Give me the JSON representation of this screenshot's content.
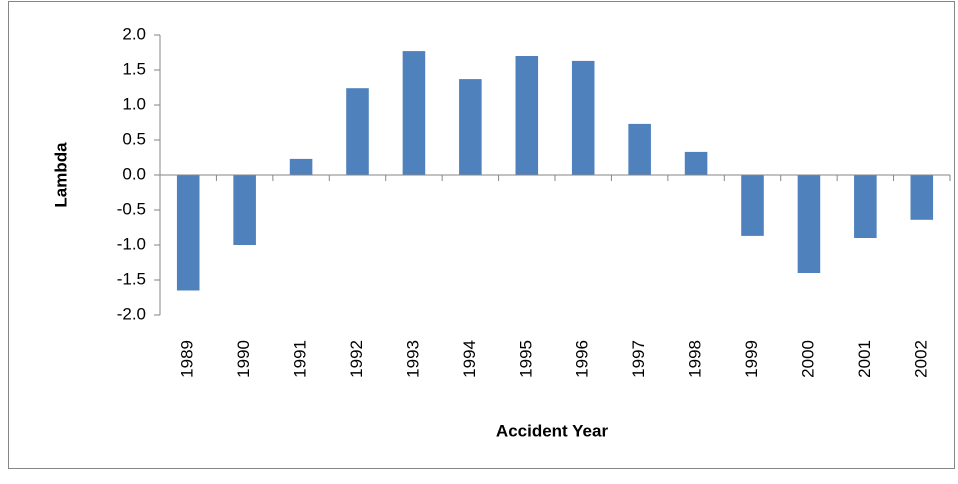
{
  "chart_data": {
    "type": "bar",
    "x_label": "Accident Year",
    "y_label": "Lambda",
    "categories": [
      "1989",
      "1990",
      "1991",
      "1992",
      "1993",
      "1994",
      "1995",
      "1996",
      "1997",
      "1998",
      "1999",
      "2000",
      "2001",
      "2002"
    ],
    "values": [
      -1.65,
      -1.0,
      0.23,
      1.24,
      1.77,
      1.37,
      1.7,
      1.63,
      0.73,
      0.33,
      -0.87,
      -1.4,
      -0.9,
      -0.64
    ],
    "color": "#4f81bd",
    "ylim": [
      -2,
      2
    ],
    "yticks": [
      {
        "value": -2,
        "label": "-2.0"
      },
      {
        "value": -1.5,
        "label": "-1.5"
      },
      {
        "value": -1,
        "label": "-1.0"
      },
      {
        "value": -0.5,
        "label": "-0.5"
      },
      {
        "value": 0,
        "label": "0.0"
      },
      {
        "value": 0.5,
        "label": "0.5"
      },
      {
        "value": 1,
        "label": "1.0"
      },
      {
        "value": 1.5,
        "label": "1.5"
      },
      {
        "value": 2,
        "label": "2.0"
      }
    ],
    "grid": false
  }
}
